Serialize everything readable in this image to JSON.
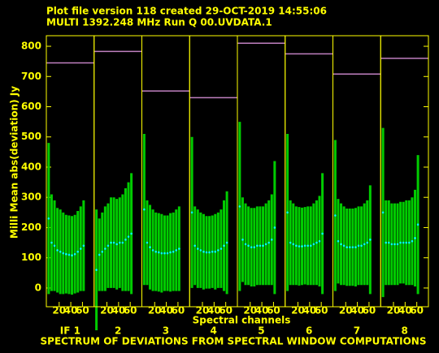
{
  "chart_data": {
    "type": "errorbar",
    "title": "Plot file version 118  created 29-OCT-2019 14:55:06",
    "subtitle": "MULTI 1392.248 MHz  Run Q 00.UVDATA.1",
    "ylabel": "Milli Mean abs(deviation) Jy",
    "xlabel": "Spectral channels",
    "footer": "SPECTRUM OF DEVIATIONS FROM SPECTRAL WINDOW COMPUTATIONS",
    "ylim": [
      -62,
      835
    ],
    "yticks": [
      0,
      100,
      200,
      300,
      400,
      500,
      600,
      700,
      800
    ],
    "xlim": [
      -2,
      80
    ],
    "xticks": [
      20,
      40,
      60
    ],
    "x": [
      2,
      7,
      12,
      17,
      22,
      27,
      32,
      37,
      42,
      47,
      52,
      57,
      62
    ],
    "point_color": "#00ffff",
    "bar_color": "#00cc00",
    "max_color": "#c080c0",
    "text_color": "#ffff00",
    "panels": [
      {
        "label": "IF 1",
        "max": 745,
        "values": [
          230,
          150,
          140,
          125,
          120,
          115,
          112,
          110,
          108,
          112,
          120,
          130,
          140
        ],
        "errors": [
          250,
          160,
          150,
          140,
          140,
          135,
          130,
          130,
          130,
          130,
          135,
          140,
          150
        ]
      },
      {
        "label": "2",
        "max": 783,
        "values": [
          60,
          110,
          120,
          130,
          140,
          150,
          150,
          145,
          150,
          150,
          160,
          170,
          180
        ],
        "errors": [
          200,
          120,
          130,
          140,
          140,
          150,
          150,
          150,
          150,
          160,
          170,
          180,
          200
        ]
      },
      {
        "label": "3",
        "max": 652,
        "values": [
          260,
          150,
          135,
          125,
          120,
          118,
          115,
          115,
          115,
          118,
          120,
          125,
          130
        ],
        "errors": [
          250,
          140,
          140,
          135,
          130,
          130,
          130,
          125,
          125,
          130,
          130,
          135,
          140
        ]
      },
      {
        "label": "4",
        "max": 630,
        "values": [
          250,
          140,
          130,
          125,
          120,
          118,
          118,
          120,
          120,
          125,
          130,
          140,
          150
        ],
        "errors": [
          250,
          130,
          130,
          125,
          125,
          120,
          120,
          120,
          125,
          125,
          130,
          150,
          170
        ]
      },
      {
        "label": "5",
        "max": 810,
        "values": [
          270,
          160,
          145,
          140,
          135,
          135,
          140,
          140,
          140,
          145,
          150,
          160,
          200
        ],
        "errors": [
          280,
          140,
          135,
          130,
          130,
          130,
          130,
          130,
          130,
          135,
          140,
          150,
          220
        ]
      },
      {
        "label": "6",
        "max": 775,
        "values": [
          250,
          150,
          145,
          140,
          138,
          138,
          140,
          140,
          140,
          145,
          150,
          155,
          180
        ],
        "errors": [
          260,
          140,
          135,
          130,
          130,
          128,
          128,
          130,
          130,
          135,
          140,
          150,
          200
        ]
      },
      {
        "label": "7",
        "max": 708,
        "values": [
          240,
          155,
          145,
          140,
          135,
          135,
          135,
          135,
          140,
          140,
          145,
          150,
          160
        ],
        "errors": [
          250,
          140,
          135,
          130,
          128,
          128,
          128,
          130,
          130,
          130,
          135,
          140,
          180
        ]
      },
      {
        "label": "8",
        "max": 760,
        "values": [
          250,
          150,
          150,
          145,
          145,
          145,
          150,
          150,
          150,
          150,
          155,
          165,
          210
        ],
        "errors": [
          280,
          140,
          140,
          135,
          135,
          135,
          135,
          135,
          140,
          140,
          145,
          160,
          230
        ]
      }
    ]
  }
}
